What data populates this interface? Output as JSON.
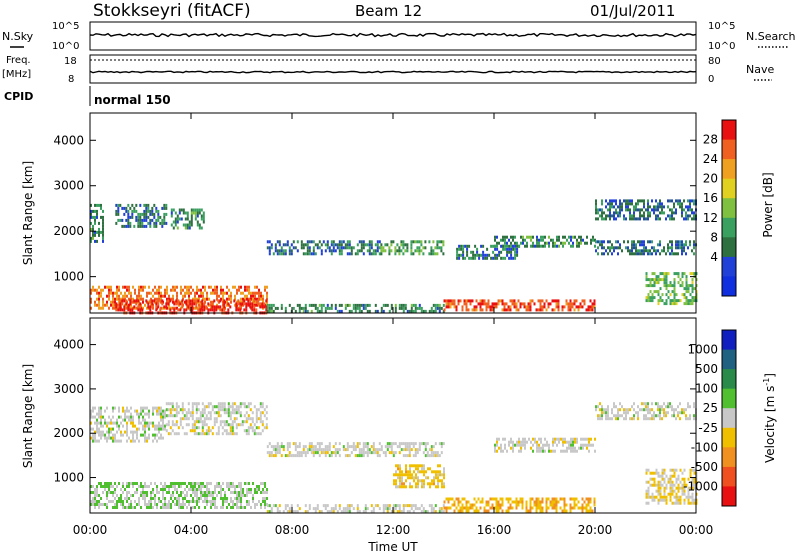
{
  "header": {
    "station": "Stokkseyri (fitACF)",
    "beam": "Beam 12",
    "date": "01/Jul/2011"
  },
  "top_panels": {
    "nsky_label": "N.Sky",
    "nsky_ticks": [
      "10^5",
      "10^0"
    ],
    "nsearch_label": "N.Search",
    "nsearch_ticks": [
      "10^5",
      "10^0"
    ],
    "freq_label_line1": "Freq.",
    "freq_label_line2": "[MHz]",
    "freq_ticks": [
      "18",
      "8"
    ],
    "nave_label": "Nave",
    "nave_ticks": [
      "80",
      "0"
    ],
    "cpid_label": "CPID",
    "cpid_value": "normal 150"
  },
  "x_axis": {
    "title": "Time UT",
    "ticks": [
      "00:00",
      "04:00",
      "08:00",
      "12:00",
      "16:00",
      "20:00",
      "00:00"
    ]
  },
  "power_panel": {
    "ylabel": "Slant Range [km]",
    "yticks": [
      "4000",
      "3000",
      "2000",
      "1000"
    ],
    "colorbar_label": "Power [dB]",
    "colorbar_ticks": [
      "28",
      "24",
      "20",
      "16",
      "12",
      "8",
      "4"
    ],
    "colors": [
      "#1030e0",
      "#2040d8",
      "#2e7040",
      "#3aa060",
      "#80c040",
      "#e0d020",
      "#f0a020",
      "#f06020",
      "#e81010"
    ]
  },
  "velocity_panel": {
    "ylabel": "Slant Range [km]",
    "yticks": [
      "4000",
      "3000",
      "2000",
      "1000"
    ],
    "colorbar_label": "Velocity [m s",
    "colorbar_exp": "-1",
    "colorbar_ticks": [
      "1000",
      "500",
      "100",
      "25",
      "-25",
      "-100",
      "-500",
      "-1000"
    ],
    "colors": [
      "#1020c0",
      "#206080",
      "#2a8a4a",
      "#50c030",
      "#c8c8c8",
      "#f0c000",
      "#f09020",
      "#f05020",
      "#e81010"
    ]
  },
  "chart_data": [
    {
      "type": "heatmap",
      "title": "Stokkseyri (fitACF) Beam 12 01/Jul/2011",
      "xlabel": "Time UT",
      "ylabel": "Slant Range [km]",
      "colorbar": "Power [dB]",
      "xlim": [
        "00:00",
        "24:00"
      ],
      "ylim": [
        200,
        4600
      ],
      "zlim": [
        0,
        30
      ],
      "regions": [
        {
          "t": [
            0.0,
            0.5
          ],
          "r": [
            1800,
            2600
          ],
          "power": 10
        },
        {
          "t": [
            1.0,
            3.0
          ],
          "r": [
            2100,
            2600
          ],
          "power": 8
        },
        {
          "t": [
            3.2,
            4.5
          ],
          "r": [
            2100,
            2500
          ],
          "power": 10
        },
        {
          "t": [
            0.0,
            7.0
          ],
          "r": [
            300,
            800
          ],
          "power": 24
        },
        {
          "t": [
            1.0,
            7.0
          ],
          "r": [
            200,
            500
          ],
          "power": 28
        },
        {
          "t": [
            7.0,
            11.5
          ],
          "r": [
            1500,
            1800
          ],
          "power": 8
        },
        {
          "t": [
            11.5,
            14.0
          ],
          "r": [
            1500,
            1800
          ],
          "power": 12
        },
        {
          "t": [
            14.5,
            17.0
          ],
          "r": [
            1400,
            1700
          ],
          "power": 8
        },
        {
          "t": [
            7.0,
            14.0
          ],
          "r": [
            250,
            400
          ],
          "power": 10
        },
        {
          "t": [
            14.0,
            20.0
          ],
          "r": [
            250,
            500
          ],
          "power": 26
        },
        {
          "t": [
            16.0,
            20.0
          ],
          "r": [
            1700,
            1900
          ],
          "power": 10
        },
        {
          "t": [
            20.0,
            24.0
          ],
          "r": [
            2300,
            2700
          ],
          "power": 8
        },
        {
          "t": [
            20.0,
            24.0
          ],
          "r": [
            1500,
            1800
          ],
          "power": 8
        },
        {
          "t": [
            22.0,
            24.0
          ],
          "r": [
            400,
            1100
          ],
          "power": 14
        }
      ]
    },
    {
      "type": "heatmap",
      "xlabel": "Time UT",
      "ylabel": "Slant Range [km]",
      "colorbar": "Velocity [m s-1]",
      "xlim": [
        "00:00",
        "24:00"
      ],
      "ylim": [
        200,
        4600
      ],
      "zlim": [
        -1000,
        1000
      ],
      "regions": [
        {
          "t": [
            0.0,
            3.0
          ],
          "r": [
            1800,
            2600
          ],
          "velocity": 0
        },
        {
          "t": [
            3.0,
            7.0
          ],
          "r": [
            2000,
            2700
          ],
          "velocity": 0
        },
        {
          "t": [
            0.0,
            7.0
          ],
          "r": [
            300,
            900
          ],
          "velocity": 100
        },
        {
          "t": [
            7.0,
            14.0
          ],
          "r": [
            1500,
            1800
          ],
          "velocity": 0
        },
        {
          "t": [
            7.0,
            14.0
          ],
          "r": [
            250,
            400
          ],
          "velocity": 0
        },
        {
          "t": [
            14.0,
            20.0
          ],
          "r": [
            250,
            550
          ],
          "velocity": -300
        },
        {
          "t": [
            12.0,
            14.0
          ],
          "r": [
            800,
            1300
          ],
          "velocity": -200
        },
        {
          "t": [
            16.0,
            20.0
          ],
          "r": [
            1600,
            1900
          ],
          "velocity": 0
        },
        {
          "t": [
            20.0,
            24.0
          ],
          "r": [
            2300,
            2700
          ],
          "velocity": 0
        },
        {
          "t": [
            22.0,
            24.0
          ],
          "r": [
            400,
            1200
          ],
          "velocity": -100
        }
      ]
    }
  ]
}
